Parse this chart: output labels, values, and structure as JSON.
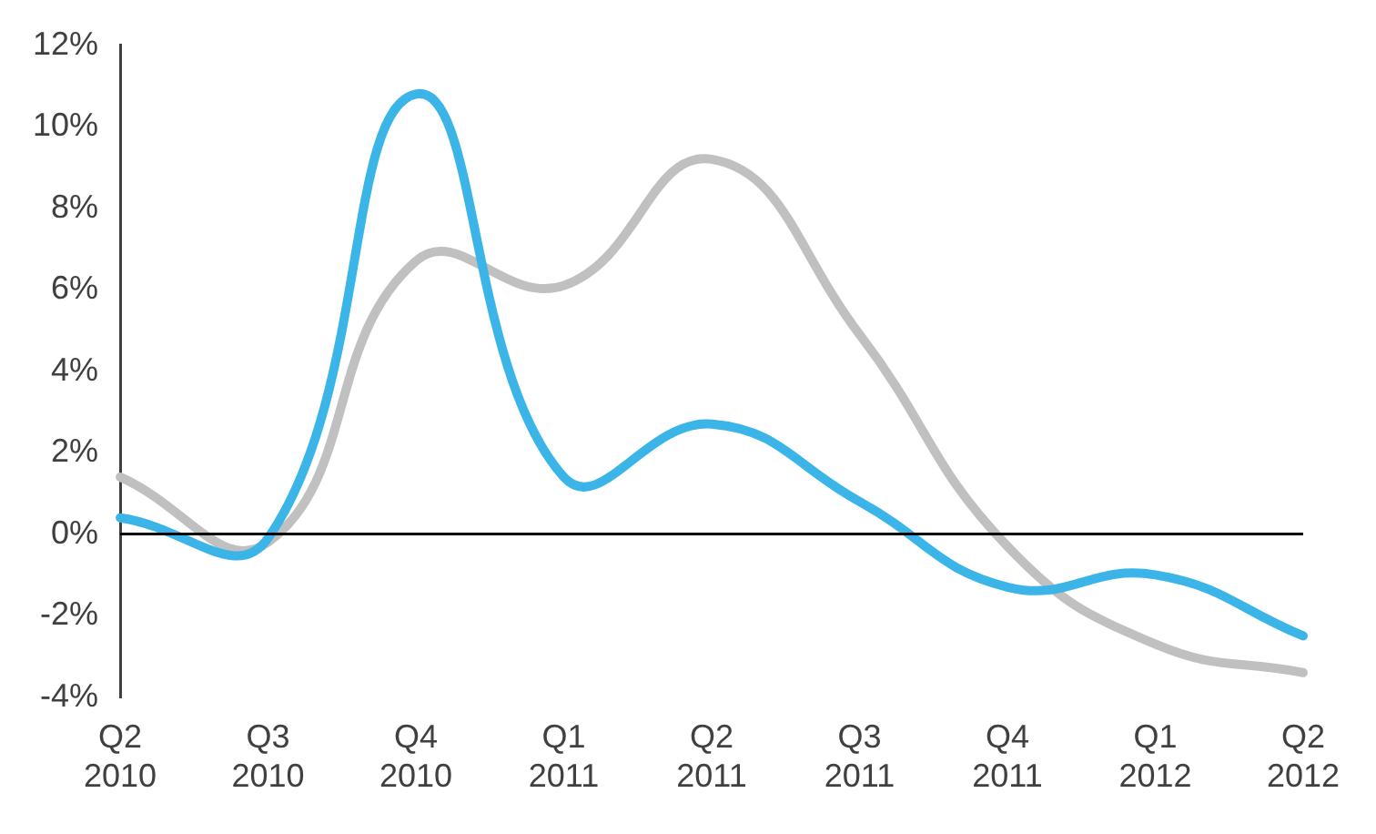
{
  "chart_data": {
    "type": "line",
    "categories": [
      "Q2 2010",
      "Q3 2010",
      "Q4 2010",
      "Q1 2011",
      "Q2 2011",
      "Q3 2011",
      "Q4 2011",
      "Q1 2012",
      "Q2 2012"
    ],
    "series": [
      {
        "color": "#3bb5e8",
        "values": [
          0.4,
          -0.1,
          10.8,
          1.4,
          2.7,
          0.8,
          -1.3,
          -1.0,
          -2.5
        ]
      },
      {
        "color": "#c0c0c0",
        "values": [
          1.4,
          -0.2,
          6.7,
          6.1,
          9.2,
          4.9,
          -0.3,
          -2.7,
          -3.4
        ]
      }
    ],
    "ylim": [
      -4,
      12
    ],
    "yticks": [
      {
        "value": -4,
        "label": "-4%"
      },
      {
        "value": -2,
        "label": "-2%"
      },
      {
        "value": 0,
        "label": "0%"
      },
      {
        "value": 2,
        "label": "2%"
      },
      {
        "value": 4,
        "label": "4%"
      },
      {
        "value": 6,
        "label": "6%"
      },
      {
        "value": 8,
        "label": "8%"
      },
      {
        "value": 10,
        "label": "10%"
      },
      {
        "value": 12,
        "label": "12%"
      }
    ],
    "ref_lines": [
      {
        "axis": "y",
        "value": 0,
        "color": "#000000"
      }
    ],
    "grid": false,
    "legend": false,
    "marker": "none",
    "line_style": "solid"
  }
}
